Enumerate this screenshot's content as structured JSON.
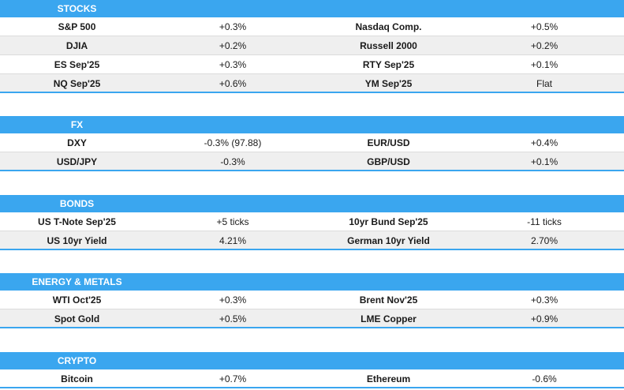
{
  "sections": [
    {
      "title": "STOCKS",
      "rows": [
        [
          "S&P 500",
          "+0.3%",
          "Nasdaq Comp.",
          "+0.5%"
        ],
        [
          "DJIA",
          "+0.2%",
          "Russell 2000",
          "+0.2%"
        ],
        [
          "ES Sep'25",
          "+0.3%",
          "RTY Sep'25",
          "+0.1%"
        ],
        [
          "NQ Sep'25",
          "+0.6%",
          "YM Sep'25",
          "Flat"
        ]
      ]
    },
    {
      "title": "FX",
      "rows": [
        [
          "DXY",
          "-0.3% (97.88)",
          "EUR/USD",
          "+0.4%"
        ],
        [
          "USD/JPY",
          "-0.3%",
          "GBP/USD",
          "+0.1%"
        ]
      ]
    },
    {
      "title": "BONDS",
      "rows": [
        [
          "US T-Note Sep'25",
          "+5 ticks",
          "10yr Bund Sep'25",
          "-11 ticks"
        ],
        [
          "US 10yr Yield",
          "4.21%",
          "German 10yr Yield",
          "2.70%"
        ]
      ]
    },
    {
      "title": "ENERGY & METALS",
      "rows": [
        [
          "WTI Oct'25",
          "+0.3%",
          "Brent Nov'25",
          "+0.3%"
        ],
        [
          "Spot Gold",
          "+0.5%",
          "LME Copper",
          "+0.9%"
        ]
      ]
    },
    {
      "title": "CRYPTO",
      "rows": [
        [
          "Bitcoin",
          "+0.7%",
          "Ethereum",
          "-0.6%"
        ]
      ]
    }
  ]
}
